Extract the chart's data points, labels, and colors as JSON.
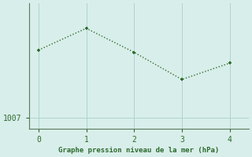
{
  "x": [
    0,
    1,
    2,
    3,
    4
  ],
  "y": [
    1013.2,
    1015.2,
    1013.0,
    1010.5,
    1012.0
  ],
  "xlim": [
    -0.2,
    4.4
  ],
  "ylim": [
    1006.0,
    1017.5
  ],
  "yticks": [
    1007
  ],
  "xticks": [
    0,
    1,
    2,
    3,
    4
  ],
  "line_color": "#2d6a2d",
  "marker_color": "#2d6a2d",
  "bg_color": "#d8eeea",
  "grid_color": "#b0d4ce",
  "spine_color": "#5a7a5a",
  "xlabel": "Graphe pression niveau de la mer (hPa)",
  "xlabel_color": "#2d6a2d",
  "tick_color": "#2d6a2d",
  "line_width": 1.0,
  "marker_size": 3.5
}
